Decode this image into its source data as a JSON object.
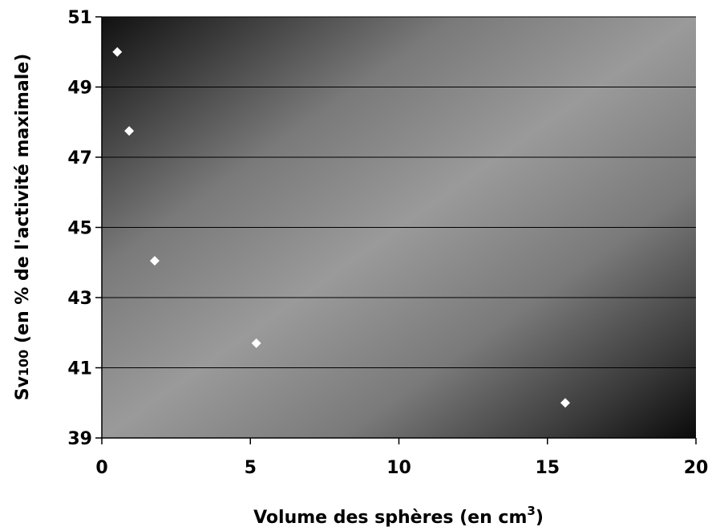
{
  "chart_data": {
    "type": "scatter",
    "title": "",
    "xlabel": "Volume des sphères (en cm",
    "xlabel_sup": "3",
    "xlabel_end": ")",
    "ylabel_main": "Sv",
    "ylabel_sub": "100",
    "ylabel_rest": " (en % de l'activité maximale)",
    "xlim": [
      0,
      20
    ],
    "ylim": [
      39,
      51
    ],
    "x_ticks": [
      0,
      5,
      10,
      15,
      20
    ],
    "y_ticks": [
      39,
      41,
      43,
      45,
      47,
      49,
      51
    ],
    "horizontal_grid": true,
    "vertical_grid": false,
    "marker": "diamond",
    "marker_color": "#ffffff",
    "background": "gradient dark corners",
    "series": [
      {
        "x": [
          0.52,
          0.92,
          1.78,
          5.2,
          15.6
        ],
        "y": [
          50.0,
          47.75,
          44.05,
          41.7,
          40.0
        ]
      }
    ]
  }
}
